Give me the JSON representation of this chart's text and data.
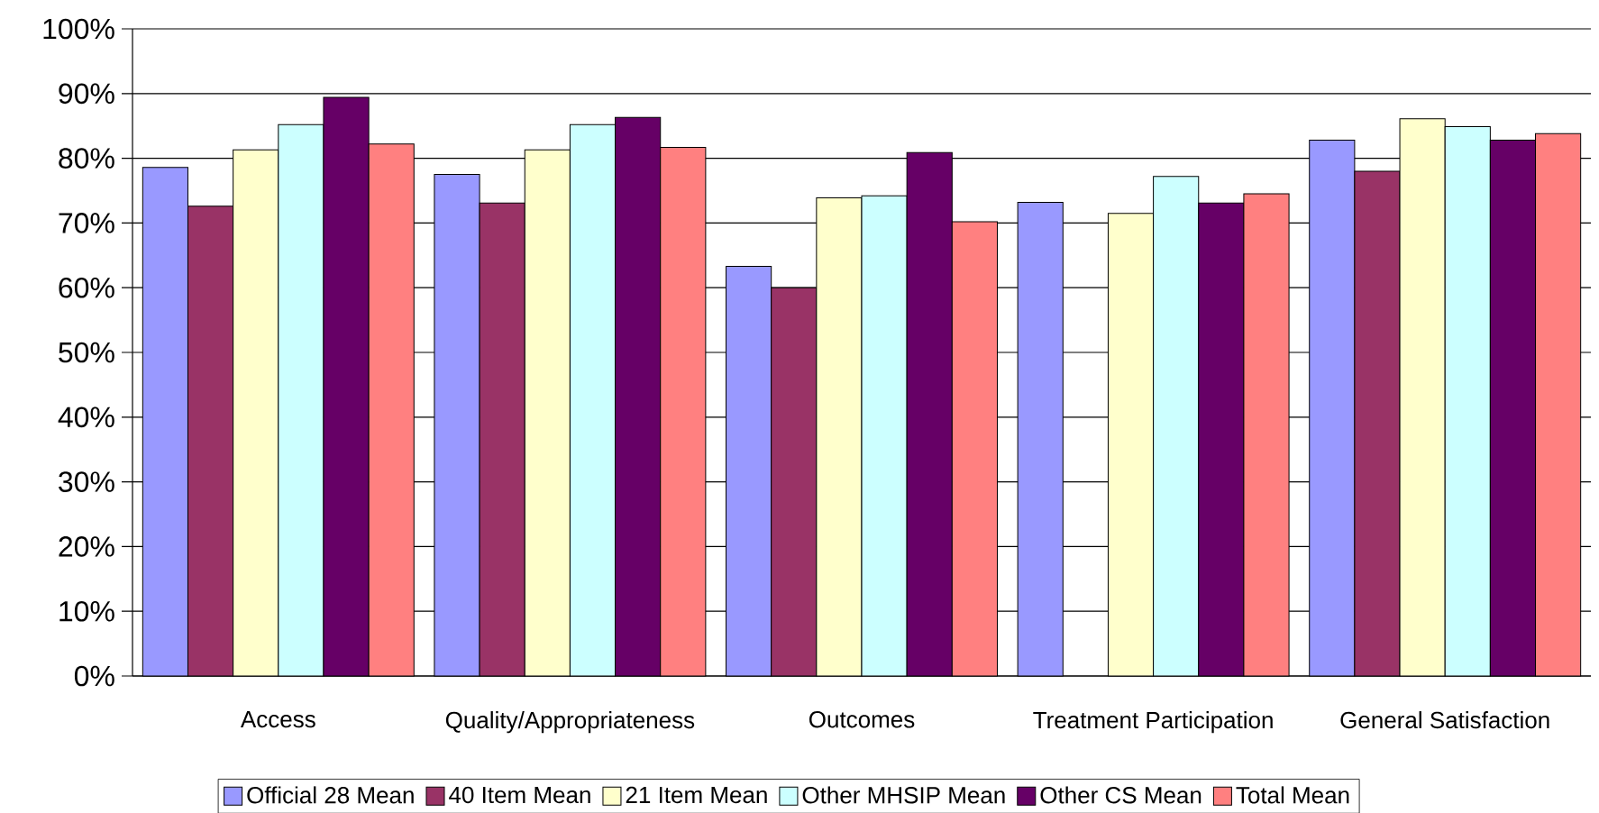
{
  "chart_data": {
    "type": "bar",
    "categories": [
      "Access",
      "Quality/Appropriateness",
      "Outcomes",
      "Treatment Participation",
      "General Satisfaction"
    ],
    "series": [
      {
        "name": "Official 28 Mean",
        "color": "#9999ff",
        "values": [
          78.6,
          77.5,
          63.3,
          73.2,
          82.8
        ]
      },
      {
        "name": "40 Item Mean",
        "color": "#993366",
        "values": [
          72.6,
          73.1,
          60.0,
          null,
          78.0
        ]
      },
      {
        "name": "21 Item Mean",
        "color": "#ffffcc",
        "values": [
          81.3,
          81.3,
          73.9,
          71.5,
          86.1
        ]
      },
      {
        "name": "Other MHSIP Mean",
        "color": "#ccffff",
        "values": [
          85.2,
          85.2,
          74.2,
          77.2,
          84.9
        ]
      },
      {
        "name": "Other CS Mean",
        "color": "#660066",
        "values": [
          89.4,
          86.3,
          80.9,
          73.1,
          82.8
        ]
      },
      {
        "name": "Total Mean",
        "color": "#ff8080",
        "values": [
          82.2,
          81.7,
          70.2,
          74.5,
          83.8
        ]
      }
    ],
    "ylim": [
      0,
      100
    ],
    "yticks": [
      {
        "value": 0,
        "label": "0%"
      },
      {
        "value": 10,
        "label": "10%"
      },
      {
        "value": 20,
        "label": "20%"
      },
      {
        "value": 30,
        "label": "30%"
      },
      {
        "value": 40,
        "label": "40%"
      },
      {
        "value": 50,
        "label": "50%"
      },
      {
        "value": 60,
        "label": "60%"
      },
      {
        "value": 70,
        "label": "70%"
      },
      {
        "value": 80,
        "label": "80%"
      },
      {
        "value": 90,
        "label": "90%"
      },
      {
        "value": 100,
        "label": "100%"
      }
    ],
    "grid": "y",
    "legend": "bottom"
  }
}
